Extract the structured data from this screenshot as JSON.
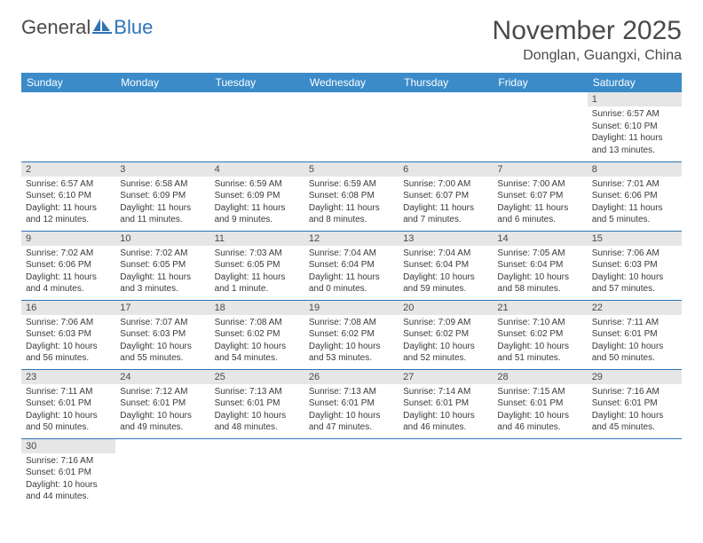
{
  "logo": {
    "part1": "General",
    "part2": "Blue"
  },
  "title": "November 2025",
  "location": "Donglan, Guangxi, China",
  "colors": {
    "header_bg": "#3b8bc9",
    "header_text": "#ffffff",
    "daynum_bg": "#e6e6e6",
    "border": "#2e74b5",
    "text": "#4a4a4a",
    "logo_accent": "#2e74b5"
  },
  "font": {
    "title_size": 30,
    "location_size": 16,
    "header_size": 12,
    "body_size": 10
  },
  "weekdays": [
    "Sunday",
    "Monday",
    "Tuesday",
    "Wednesday",
    "Thursday",
    "Friday",
    "Saturday"
  ],
  "weeks": [
    [
      null,
      null,
      null,
      null,
      null,
      null,
      {
        "n": "1",
        "sunrise": "Sunrise: 6:57 AM",
        "sunset": "Sunset: 6:10 PM",
        "daylight": "Daylight: 11 hours and 13 minutes."
      }
    ],
    [
      {
        "n": "2",
        "sunrise": "Sunrise: 6:57 AM",
        "sunset": "Sunset: 6:10 PM",
        "daylight": "Daylight: 11 hours and 12 minutes."
      },
      {
        "n": "3",
        "sunrise": "Sunrise: 6:58 AM",
        "sunset": "Sunset: 6:09 PM",
        "daylight": "Daylight: 11 hours and 11 minutes."
      },
      {
        "n": "4",
        "sunrise": "Sunrise: 6:59 AM",
        "sunset": "Sunset: 6:09 PM",
        "daylight": "Daylight: 11 hours and 9 minutes."
      },
      {
        "n": "5",
        "sunrise": "Sunrise: 6:59 AM",
        "sunset": "Sunset: 6:08 PM",
        "daylight": "Daylight: 11 hours and 8 minutes."
      },
      {
        "n": "6",
        "sunrise": "Sunrise: 7:00 AM",
        "sunset": "Sunset: 6:07 PM",
        "daylight": "Daylight: 11 hours and 7 minutes."
      },
      {
        "n": "7",
        "sunrise": "Sunrise: 7:00 AM",
        "sunset": "Sunset: 6:07 PM",
        "daylight": "Daylight: 11 hours and 6 minutes."
      },
      {
        "n": "8",
        "sunrise": "Sunrise: 7:01 AM",
        "sunset": "Sunset: 6:06 PM",
        "daylight": "Daylight: 11 hours and 5 minutes."
      }
    ],
    [
      {
        "n": "9",
        "sunrise": "Sunrise: 7:02 AM",
        "sunset": "Sunset: 6:06 PM",
        "daylight": "Daylight: 11 hours and 4 minutes."
      },
      {
        "n": "10",
        "sunrise": "Sunrise: 7:02 AM",
        "sunset": "Sunset: 6:05 PM",
        "daylight": "Daylight: 11 hours and 3 minutes."
      },
      {
        "n": "11",
        "sunrise": "Sunrise: 7:03 AM",
        "sunset": "Sunset: 6:05 PM",
        "daylight": "Daylight: 11 hours and 1 minute."
      },
      {
        "n": "12",
        "sunrise": "Sunrise: 7:04 AM",
        "sunset": "Sunset: 6:04 PM",
        "daylight": "Daylight: 11 hours and 0 minutes."
      },
      {
        "n": "13",
        "sunrise": "Sunrise: 7:04 AM",
        "sunset": "Sunset: 6:04 PM",
        "daylight": "Daylight: 10 hours and 59 minutes."
      },
      {
        "n": "14",
        "sunrise": "Sunrise: 7:05 AM",
        "sunset": "Sunset: 6:04 PM",
        "daylight": "Daylight: 10 hours and 58 minutes."
      },
      {
        "n": "15",
        "sunrise": "Sunrise: 7:06 AM",
        "sunset": "Sunset: 6:03 PM",
        "daylight": "Daylight: 10 hours and 57 minutes."
      }
    ],
    [
      {
        "n": "16",
        "sunrise": "Sunrise: 7:06 AM",
        "sunset": "Sunset: 6:03 PM",
        "daylight": "Daylight: 10 hours and 56 minutes."
      },
      {
        "n": "17",
        "sunrise": "Sunrise: 7:07 AM",
        "sunset": "Sunset: 6:03 PM",
        "daylight": "Daylight: 10 hours and 55 minutes."
      },
      {
        "n": "18",
        "sunrise": "Sunrise: 7:08 AM",
        "sunset": "Sunset: 6:02 PM",
        "daylight": "Daylight: 10 hours and 54 minutes."
      },
      {
        "n": "19",
        "sunrise": "Sunrise: 7:08 AM",
        "sunset": "Sunset: 6:02 PM",
        "daylight": "Daylight: 10 hours and 53 minutes."
      },
      {
        "n": "20",
        "sunrise": "Sunrise: 7:09 AM",
        "sunset": "Sunset: 6:02 PM",
        "daylight": "Daylight: 10 hours and 52 minutes."
      },
      {
        "n": "21",
        "sunrise": "Sunrise: 7:10 AM",
        "sunset": "Sunset: 6:02 PM",
        "daylight": "Daylight: 10 hours and 51 minutes."
      },
      {
        "n": "22",
        "sunrise": "Sunrise: 7:11 AM",
        "sunset": "Sunset: 6:01 PM",
        "daylight": "Daylight: 10 hours and 50 minutes."
      }
    ],
    [
      {
        "n": "23",
        "sunrise": "Sunrise: 7:11 AM",
        "sunset": "Sunset: 6:01 PM",
        "daylight": "Daylight: 10 hours and 50 minutes."
      },
      {
        "n": "24",
        "sunrise": "Sunrise: 7:12 AM",
        "sunset": "Sunset: 6:01 PM",
        "daylight": "Daylight: 10 hours and 49 minutes."
      },
      {
        "n": "25",
        "sunrise": "Sunrise: 7:13 AM",
        "sunset": "Sunset: 6:01 PM",
        "daylight": "Daylight: 10 hours and 48 minutes."
      },
      {
        "n": "26",
        "sunrise": "Sunrise: 7:13 AM",
        "sunset": "Sunset: 6:01 PM",
        "daylight": "Daylight: 10 hours and 47 minutes."
      },
      {
        "n": "27",
        "sunrise": "Sunrise: 7:14 AM",
        "sunset": "Sunset: 6:01 PM",
        "daylight": "Daylight: 10 hours and 46 minutes."
      },
      {
        "n": "28",
        "sunrise": "Sunrise: 7:15 AM",
        "sunset": "Sunset: 6:01 PM",
        "daylight": "Daylight: 10 hours and 46 minutes."
      },
      {
        "n": "29",
        "sunrise": "Sunrise: 7:16 AM",
        "sunset": "Sunset: 6:01 PM",
        "daylight": "Daylight: 10 hours and 45 minutes."
      }
    ],
    [
      {
        "n": "30",
        "sunrise": "Sunrise: 7:16 AM",
        "sunset": "Sunset: 6:01 PM",
        "daylight": "Daylight: 10 hours and 44 minutes."
      },
      null,
      null,
      null,
      null,
      null,
      null
    ]
  ]
}
